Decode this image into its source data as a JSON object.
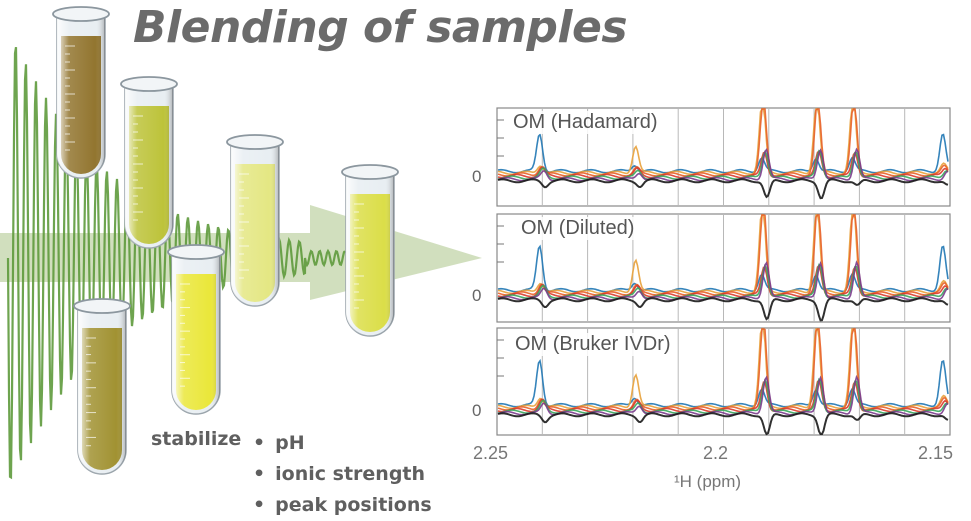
{
  "title": "Blending of samples",
  "stabilize": {
    "label": "stabilize",
    "items": [
      "pH",
      "ionic strength",
      "peak positions"
    ]
  },
  "colors": {
    "wave": "#5e9a3c",
    "arrow": "#c9d9b3",
    "title": "#6b6b6b",
    "tube_fills": [
      "#8a6a1e",
      "#b9bf2a",
      "#e3e67a",
      "#e9e62a",
      "#9a8a22",
      "#d9dc3a"
    ]
  },
  "chart_data": [
    {
      "type": "line",
      "title": "OM (Hadamard)",
      "x_ticks": [
        "2.25",
        "2.2",
        "2.15"
      ],
      "y_ticks": [
        "0"
      ],
      "xlim": [
        2.25,
        2.15
      ],
      "peaks": [
        2.24,
        2.219,
        2.191,
        2.179,
        2.171,
        2.151
      ],
      "series_colors": [
        "#1f77b4",
        "#e8a13a",
        "#e8622a",
        "#d93b2b",
        "#3aa65c",
        "#7a3b8c",
        "#1a1a1a"
      ]
    },
    {
      "type": "line",
      "title": "OM (Diluted)",
      "x_ticks": [
        "2.25",
        "2.2",
        "2.15"
      ],
      "y_ticks": [
        "0"
      ],
      "xlim": [
        2.25,
        2.15
      ],
      "peaks": [
        2.24,
        2.219,
        2.191,
        2.179,
        2.171,
        2.151
      ],
      "series_colors": [
        "#1f77b4",
        "#e8a13a",
        "#e8622a",
        "#d93b2b",
        "#3aa65c",
        "#7a3b8c",
        "#1a1a1a"
      ]
    },
    {
      "type": "line",
      "title": "OM (Bruker IVDr)",
      "x_ticks": [
        "2.25",
        "2.2",
        "2.15"
      ],
      "y_ticks": [
        "0"
      ],
      "xlim": [
        2.25,
        2.15
      ],
      "xlabel": "¹H (ppm)",
      "peaks": [
        2.24,
        2.219,
        2.191,
        2.179,
        2.171,
        2.151
      ],
      "series_colors": [
        "#1f77b4",
        "#e8a13a",
        "#e8622a",
        "#d93b2b",
        "#3aa65c",
        "#7a3b8c",
        "#1a1a1a"
      ]
    }
  ]
}
